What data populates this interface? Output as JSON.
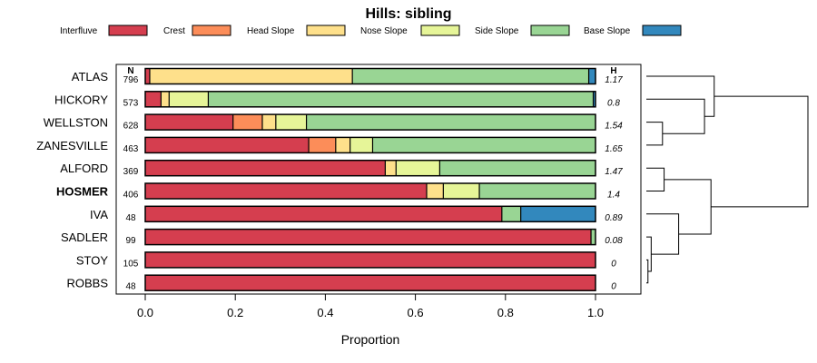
{
  "chart_data": {
    "type": "bar",
    "subtype": "stacked-horizontal-proportion",
    "title": "Hills: sibling",
    "xlabel": "Proportion",
    "ylabel": "",
    "xlim": [
      0,
      1
    ],
    "xticks": [
      "0.0",
      "0.2",
      "0.4",
      "0.6",
      "0.8",
      "1.0"
    ],
    "n_header": "N",
    "h_header": "H",
    "legend": [
      {
        "label": "Interfluve",
        "color": "#D53E4F"
      },
      {
        "label": "Crest",
        "color": "#FC8D59"
      },
      {
        "label": "Head Slope",
        "color": "#FEE08B"
      },
      {
        "label": "Nose Slope",
        "color": "#E6F598"
      },
      {
        "label": "Side Slope",
        "color": "#99D594"
      },
      {
        "label": "Base Slope",
        "color": "#3288BD"
      }
    ],
    "series_names": [
      "Interfluve",
      "Crest",
      "Head Slope",
      "Nose Slope",
      "Side Slope",
      "Base Slope"
    ],
    "categories": [
      "ATLAS",
      "HICKORY",
      "WELLSTON",
      "ZANESVILLE",
      "ALFORD",
      "HOSMER",
      "IVA",
      "SADLER",
      "STOY",
      "ROBBS"
    ],
    "highlight": "HOSMER",
    "rows": [
      {
        "name": "ATLAS",
        "n": "796",
        "h": "1.17",
        "values": [
          0.01,
          0.0,
          0.45,
          0.0,
          0.525,
          0.015
        ]
      },
      {
        "name": "HICKORY",
        "n": "573",
        "h": "0.8",
        "values": [
          0.035,
          0.0,
          0.018,
          0.087,
          0.855,
          0.005
        ]
      },
      {
        "name": "WELLSTON",
        "n": "628",
        "h": "1.54",
        "values": [
          0.195,
          0.065,
          0.03,
          0.068,
          0.642,
          0.0
        ]
      },
      {
        "name": "ZANESVILLE",
        "n": "463",
        "h": "1.65",
        "values": [
          0.363,
          0.06,
          0.032,
          0.05,
          0.495,
          0.0
        ]
      },
      {
        "name": "ALFORD",
        "n": "369",
        "h": "1.47",
        "values": [
          0.533,
          0.0,
          0.024,
          0.097,
          0.346,
          0.0
        ]
      },
      {
        "name": "HOSMER",
        "n": "406",
        "h": "1.4",
        "values": [
          0.625,
          0.0,
          0.037,
          0.08,
          0.258,
          0.0
        ]
      },
      {
        "name": "IVA",
        "n": "48",
        "h": "0.89",
        "values": [
          0.792,
          0.0,
          0.0,
          0.0,
          0.042,
          0.166
        ]
      },
      {
        "name": "SADLER",
        "n": "99",
        "h": "0.08",
        "values": [
          0.99,
          0.0,
          0.0,
          0.0,
          0.01,
          0.0
        ]
      },
      {
        "name": "STOY",
        "n": "105",
        "h": "0",
        "values": [
          1.0,
          0.0,
          0.0,
          0.0,
          0.0,
          0.0
        ]
      },
      {
        "name": "ROBBS",
        "n": "48",
        "h": "0",
        "values": [
          1.0,
          0.0,
          0.0,
          0.0,
          0.0,
          0.0
        ]
      }
    ],
    "dendrogram": {
      "leaf_order": [
        "ATLAS",
        "HICKORY",
        "WELLSTON",
        "ZANESVILLE",
        "ALFORD",
        "HOSMER",
        "IVA",
        "SADLER",
        "STOY",
        "ROBBS"
      ],
      "merges": [
        {
          "a": 8,
          "b": 9,
          "height": 0.01
        },
        {
          "a": 7,
          "b": 10,
          "height": 0.03
        },
        {
          "a": 2,
          "b": 3,
          "height": 0.1
        },
        {
          "a": 4,
          "b": 5,
          "height": 0.11
        },
        {
          "a": 6,
          "b": 11,
          "height": 0.2
        },
        {
          "a": 1,
          "b": 12,
          "height": 0.36
        },
        {
          "a": 0,
          "b": 15,
          "height": 0.42
        },
        {
          "a": 13,
          "b": 14,
          "height": 0.4
        },
        {
          "a": 16,
          "b": 17,
          "height": 1.0
        }
      ]
    }
  }
}
